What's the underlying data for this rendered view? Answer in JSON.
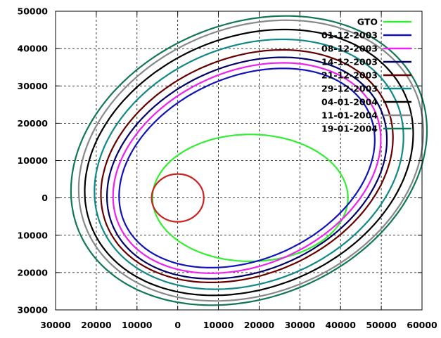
{
  "chart_data": {
    "type": "line",
    "title": "",
    "xlabel": "",
    "ylabel": "",
    "xlim": [
      -30000,
      60000
    ],
    "ylim": [
      -30000,
      50000
    ],
    "xticks": [
      -30000,
      -20000,
      -10000,
      0,
      10000,
      20000,
      30000,
      40000,
      50000,
      60000
    ],
    "yticks": [
      -30000,
      -20000,
      -10000,
      0,
      10000,
      20000,
      30000,
      40000,
      50000
    ],
    "xtick_labels": [
      "30000",
      "20000",
      "10000",
      "0",
      "10000",
      "20000",
      "30000",
      "40000",
      "50000",
      "60000"
    ],
    "ytick_labels": [
      "30000",
      "20000",
      "10000",
      "0",
      "10000",
      "20000",
      "30000",
      "40000",
      "50000"
    ],
    "grid": true,
    "legend_position": "top-right",
    "earth": {
      "cx": 0,
      "cy": 0,
      "r": 6400,
      "color": "#cc2222"
    },
    "series": [
      {
        "name": "GTO",
        "color": "#33ee33",
        "cx": 17800,
        "cy": 0,
        "rx": 24000,
        "ry": 17000,
        "angle": 0
      },
      {
        "name": "01-12-2003",
        "color": "#1111bb",
        "cx": 17000,
        "cy": 8000,
        "rx": 33500,
        "ry": 24000,
        "angle": 30
      },
      {
        "name": "08-12-2003",
        "color": "#ee22ee",
        "cx": 17000,
        "cy": 8000,
        "rx": 35000,
        "ry": 25500,
        "angle": 30
      },
      {
        "name": "14-12-2003",
        "color": "#000066",
        "cx": 17000,
        "cy": 8000,
        "rx": 36500,
        "ry": 27000,
        "angle": 30
      },
      {
        "name": "21-12-2003",
        "color": "#660000",
        "cx": 17000,
        "cy": 8500,
        "rx": 38000,
        "ry": 28500,
        "angle": 30
      },
      {
        "name": "29-12-2003",
        "color": "#118888",
        "cx": 17500,
        "cy": 9000,
        "rx": 40000,
        "ry": 31000,
        "angle": 30
      },
      {
        "name": "04-01-2004",
        "color": "#000000",
        "cx": 17500,
        "cy": 9500,
        "rx": 42500,
        "ry": 33000,
        "angle": 30
      },
      {
        "name": "11-01-2004",
        "color": "#888888",
        "cx": 18000,
        "cy": 10000,
        "rx": 44500,
        "ry": 35000,
        "angle": 30
      },
      {
        "name": "19-01-2004",
        "color": "#117755",
        "cx": 17500,
        "cy": 10000,
        "rx": 46000,
        "ry": 36000,
        "angle": 30
      }
    ]
  }
}
